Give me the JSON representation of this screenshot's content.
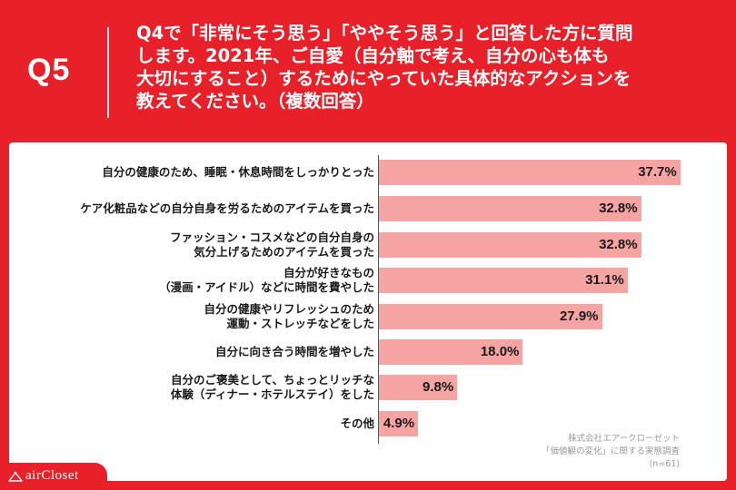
{
  "header": {
    "q_label": "Q5",
    "question_lines": [
      "Q4で「非常にそう思う」「ややそう思う」と回答した方に質問",
      "します。2021年、ご自愛（自分軸で考え、自分の心も体も",
      "大切にすること）するためにやっていた具体的なアクションを",
      "教えてください。（複数回答）"
    ]
  },
  "source": {
    "line1": "株式会社エアークローゼット",
    "line2": "「価値観の変化」に関する実態調査",
    "line3": "(n=61)"
  },
  "logo": {
    "text": "airCloset"
  },
  "colors": {
    "background": "#e8202a",
    "bar": "#f6a3a3",
    "panel": "#ffffff"
  },
  "chart_data": {
    "type": "bar",
    "orientation": "horizontal",
    "title": "",
    "xlabel": "",
    "ylabel": "",
    "xlim": [
      0,
      40
    ],
    "categories": [
      [
        "自分の健康のため、睡眠・休息時間をしっかりとった"
      ],
      [
        "ケア化粧品などの自分自身を労るためのアイテムを買った"
      ],
      [
        "ファッション・コスメなどの自分自身の",
        "気分上げるためのアイテムを買った"
      ],
      [
        "自分が好きなもの",
        "（漫画・アイドル）などに時間を費やした"
      ],
      [
        "自分の健康やリフレッシュのため",
        "運動・ストレッチなどをした"
      ],
      [
        "自分に向き合う時間を増やした"
      ],
      [
        "自分のご褒美として、ちょっとリッチな",
        "体験（ディナー・ホテルステイ）をした"
      ],
      [
        "その他"
      ]
    ],
    "values": [
      37.7,
      32.8,
      32.8,
      31.1,
      27.9,
      18.0,
      9.8,
      4.9
    ],
    "value_labels": [
      "37.7%",
      "32.8%",
      "32.8%",
      "31.1%",
      "27.9%",
      "18.0%",
      "9.8%",
      "4.9%"
    ]
  }
}
